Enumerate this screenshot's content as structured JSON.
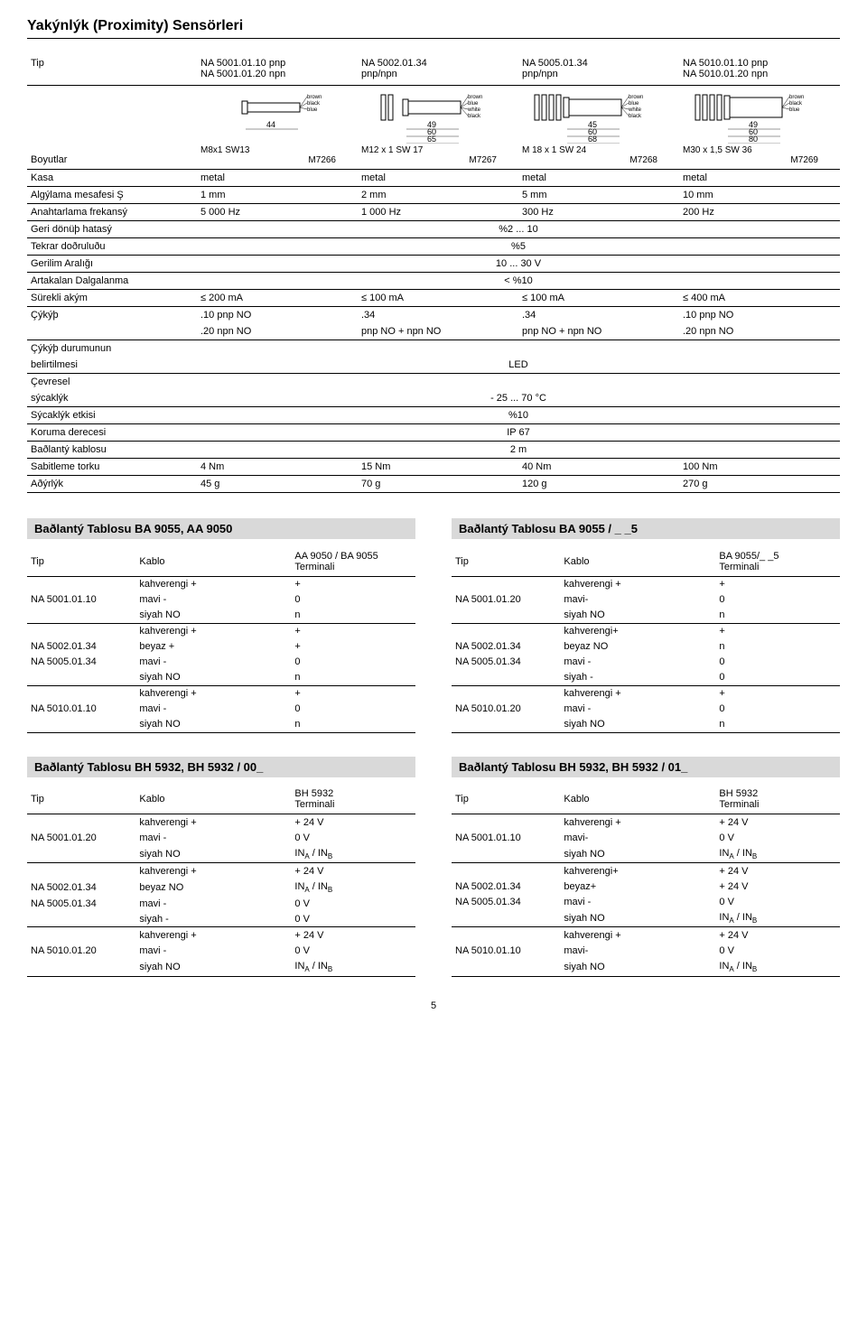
{
  "page": {
    "title": "Yakýnlýk (Proximity) Sensörleri",
    "pageNumber": "5"
  },
  "header": {
    "rowLabel": "Tip",
    "cols": [
      {
        "line1": "NA 5001.01.10 pnp",
        "line2": "NA 5001.01.20 npn"
      },
      {
        "line1": "NA 5002.01.34",
        "line2": "pnp/npn"
      },
      {
        "line1": "NA 5005.01.34",
        "line2": "pnp/npn"
      },
      {
        "line1": "NA 5010.01.10 pnp",
        "line2": "NA 5010.01.20 npn"
      }
    ]
  },
  "diagrams": [
    {
      "wires": [
        "brown",
        "black",
        "blue"
      ],
      "dims": [
        "44"
      ],
      "thread": "M8x1 SW13",
      "code": "M7266"
    },
    {
      "wires": [
        "brown",
        "blue",
        "white",
        "black"
      ],
      "dims": [
        "49",
        "60",
        "65"
      ],
      "thread": "M12 x 1 SW 17",
      "code": "M7267"
    },
    {
      "wires": [
        "brown",
        "blue",
        "white",
        "black"
      ],
      "dims": [
        "45",
        "60",
        "68"
      ],
      "thread": "M 18 x 1 SW 24",
      "code": "M7268"
    },
    {
      "wires": [
        "brown",
        "black",
        "blue"
      ],
      "dims": [
        "49",
        "60",
        "80"
      ],
      "thread": "M30 x 1,5 SW 36",
      "code": "M7269"
    }
  ],
  "specs": [
    {
      "label": "Boyutlar",
      "vals": [
        "",
        "",
        "",
        ""
      ],
      "skipRule": true
    },
    {
      "label": "Kasa",
      "vals": [
        "metal",
        "metal",
        "metal",
        "metal"
      ]
    },
    {
      "label": "Algýlama mesafesi Ş",
      "vals": [
        "1 mm",
        "2 mm",
        "5 mm",
        "10 mm"
      ]
    },
    {
      "label": "Anahtarlama frekansý",
      "vals": [
        "5 000 Hz",
        "1 000 Hz",
        "300 Hz",
        "200 Hz"
      ]
    },
    {
      "label": "Geri dönüþ hatasý",
      "span": "%2 ... 10"
    },
    {
      "label": "Tekrar doðruluðu",
      "span": "%5"
    },
    {
      "label": "Gerilim Aralığı",
      "span": "10 ... 30 V"
    },
    {
      "label": "Artakalan Dalgalanma",
      "span": "< %10"
    },
    {
      "label": "Sürekli akým",
      "vals": [
        "≤ 200 mA",
        "≤ 100 mA",
        "≤ 100 mA",
        "≤ 400 mA"
      ]
    },
    {
      "label": "Çýkýþ",
      "vals": [
        ".10 pnp NO",
        ".34",
        ".34",
        ".10 pnp NO"
      ],
      "noRule": true
    },
    {
      "label": "",
      "vals": [
        ".20 npn NO",
        "pnp NO + npn NO",
        "pnp NO + npn NO",
        ".20 npn NO"
      ]
    },
    {
      "label": "Çýkýþ durumunun",
      "vals": [
        "",
        "",
        "",
        ""
      ],
      "noRule": true
    },
    {
      "label": "belirtilmesi",
      "span": "LED"
    },
    {
      "label": "Çevresel",
      "vals": [
        "",
        "",
        "",
        ""
      ],
      "noRule": true
    },
    {
      "label": "sýcaklýk",
      "span": "- 25 ... 70 °C"
    },
    {
      "label": "Sýcaklýk etkisi",
      "span": "%10"
    },
    {
      "label": "Koruma derecesi",
      "span": "IP 67"
    },
    {
      "label": "Baðlantý kablosu",
      "span": "2 m"
    },
    {
      "label": "Sabitleme torku",
      "vals": [
        "4 Nm",
        "15 Nm",
        "40 Nm",
        "100 Nm"
      ]
    },
    {
      "label": "Aðýrlýk",
      "vals": [
        "45 g",
        "70 g",
        "120 g",
        "270 g"
      ]
    }
  ],
  "conn": [
    {
      "title": "Baðlantý Tablosu BA 9055, AA 9050",
      "head": [
        "Tip",
        "Kablo",
        "AA 9050 / BA 9055 Terminali"
      ],
      "rows": [
        {
          "c1": "",
          "c2": "kahverengi +",
          "c3": "+",
          "sep": false
        },
        {
          "c1": "NA 5001.01.10",
          "c2": "mavi -",
          "c3": "0",
          "sep": false
        },
        {
          "c1": "",
          "c2": "siyah NO",
          "c3": "n",
          "sep": true
        },
        {
          "c1": "",
          "c2": "kahverengi +",
          "c3": "+",
          "sep": false
        },
        {
          "c1": "NA 5002.01.34",
          "c2": "beyaz +",
          "c3": "+",
          "sep": false
        },
        {
          "c1": "NA 5005.01.34",
          "c2": "mavi -",
          "c3": "0",
          "sep": false
        },
        {
          "c1": "",
          "c2": "siyah NO",
          "c3": "n",
          "sep": true
        },
        {
          "c1": "",
          "c2": "kahverengi +",
          "c3": "+",
          "sep": false
        },
        {
          "c1": "NA 5010.01.10",
          "c2": "mavi -",
          "c3": "0",
          "sep": false
        },
        {
          "c1": "",
          "c2": "siyah NO",
          "c3": "n",
          "sep": true
        }
      ]
    },
    {
      "title": "Baðlantý Tablosu BA 9055 / _ _5",
      "head": [
        "Tip",
        "Kablo",
        "BA 9055/_ _5 Terminali"
      ],
      "rows": [
        {
          "c1": "",
          "c2": "kahverengi +",
          "c3": "+",
          "sep": false
        },
        {
          "c1": "NA 5001.01.20",
          "c2": "mavi-",
          "c3": "0",
          "sep": false
        },
        {
          "c1": "",
          "c2": "siyah NO",
          "c3": "n",
          "sep": true
        },
        {
          "c1": "",
          "c2": "kahverengi+",
          "c3": "+",
          "sep": false
        },
        {
          "c1": "NA 5002.01.34",
          "c2": "beyaz NO",
          "c3": "n",
          "sep": false
        },
        {
          "c1": "NA 5005.01.34",
          "c2": "mavi -",
          "c3": "0",
          "sep": false
        },
        {
          "c1": "",
          "c2": "siyah -",
          "c3": "0",
          "sep": true
        },
        {
          "c1": "",
          "c2": "kahverengi +",
          "c3": "+",
          "sep": false
        },
        {
          "c1": "NA 5010.01.20",
          "c2": "mavi -",
          "c3": "0",
          "sep": false
        },
        {
          "c1": "",
          "c2": "siyah NO",
          "c3": "n",
          "sep": true
        }
      ]
    },
    {
      "title": "Baðlantý Tablosu BH 5932, BH 5932 / 00_",
      "head": [
        "Tip",
        "Kablo",
        "BH 5932 Terminali"
      ],
      "rows": [
        {
          "c1": "",
          "c2": "kahverengi +",
          "c3": "+ 24 V",
          "sep": false
        },
        {
          "c1": "NA 5001.01.20",
          "c2": "mavi -",
          "c3": "0 V",
          "sep": false
        },
        {
          "c1": "",
          "c2": "siyah NO",
          "c3": "IN_A / IN_B",
          "sep": true
        },
        {
          "c1": "",
          "c2": "kahverengi +",
          "c3": "+ 24 V",
          "sep": false
        },
        {
          "c1": "NA 5002.01.34",
          "c2": "beyaz NO",
          "c3": "IN_A / IN_B",
          "sep": false
        },
        {
          "c1": "NA 5005.01.34",
          "c2": "mavi -",
          "c3": "0 V",
          "sep": false
        },
        {
          "c1": "",
          "c2": "siyah -",
          "c3": "0 V",
          "sep": true
        },
        {
          "c1": "",
          "c2": "kahverengi +",
          "c3": "+ 24 V",
          "sep": false
        },
        {
          "c1": "NA 5010.01.20",
          "c2": "mavi -",
          "c3": "0 V",
          "sep": false
        },
        {
          "c1": "",
          "c2": "siyah NO",
          "c3": "IN_A / IN_B",
          "sep": true
        }
      ]
    },
    {
      "title": "Baðlantý Tablosu BH 5932, BH 5932 / 01_",
      "head": [
        "Tip",
        "Kablo",
        "BH 5932 Terminali"
      ],
      "rows": [
        {
          "c1": "",
          "c2": "kahverengi +",
          "c3": "+ 24 V",
          "sep": false
        },
        {
          "c1": "NA 5001.01.10",
          "c2": "mavi-",
          "c3": "0 V",
          "sep": false
        },
        {
          "c1": "",
          "c2": "siyah NO",
          "c3": "IN_A / IN_B",
          "sep": true
        },
        {
          "c1": "",
          "c2": "kahverengi+",
          "c3": "+ 24 V",
          "sep": false
        },
        {
          "c1": "NA 5002.01.34",
          "c2": "beyaz+",
          "c3": "+ 24 V",
          "sep": false
        },
        {
          "c1": "NA 5005.01.34",
          "c2": "mavi -",
          "c3": "0 V",
          "sep": false
        },
        {
          "c1": "",
          "c2": "siyah NO",
          "c3": "IN_A / IN_B",
          "sep": true
        },
        {
          "c1": "",
          "c2": "kahverengi +",
          "c3": "+ 24 V",
          "sep": false
        },
        {
          "c1": "NA 5010.01.10",
          "c2": "mavi-",
          "c3": "0 V",
          "sep": false
        },
        {
          "c1": "",
          "c2": "siyah NO",
          "c3": "IN_A / IN_B",
          "sep": true
        }
      ]
    }
  ]
}
